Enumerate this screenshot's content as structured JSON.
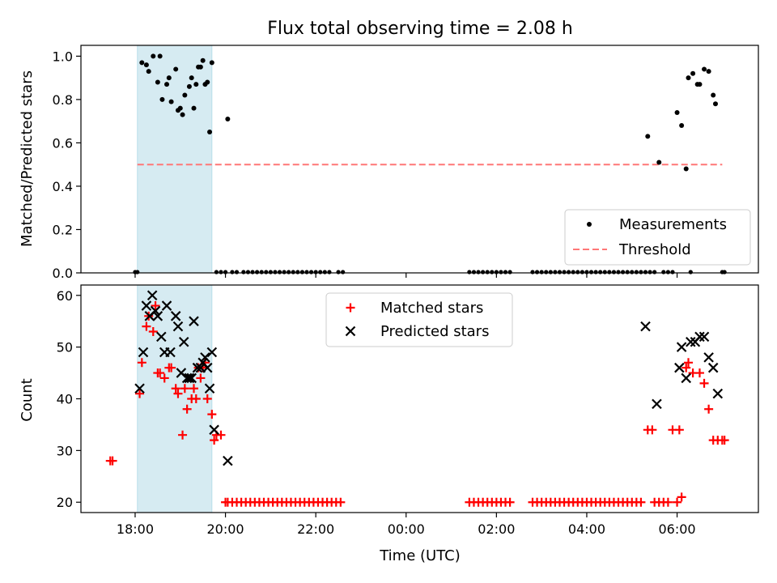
{
  "chart_data": [
    {
      "type": "scatter",
      "title": "Flux total observing time = 2.08 h",
      "xlabel": "",
      "ylabel": "Matched/Predicted stars",
      "x_unit": "hours since 00:00 UTC (negative = previous day)",
      "xlim": [
        -7.2,
        7.8
      ],
      "ylim": [
        0,
        1.05
      ],
      "yticks": [
        0,
        0.2,
        0.4,
        0.6,
        0.8,
        1.0
      ],
      "ytick_labels": [
        "0.0",
        "0.2",
        "0.4",
        "0.6",
        "0.8",
        "1.0"
      ],
      "observing_window": [
        -5.95,
        -4.3
      ],
      "threshold": {
        "name": "Threshold",
        "y": 0.5,
        "x_range": [
          -5.95,
          7.0
        ],
        "color": "#ff7777"
      },
      "legend_position": "lower-right",
      "series": [
        {
          "name": "Measurements",
          "color": "#000000",
          "x": [
            -5.85,
            -5.75,
            -5.7,
            -5.6,
            -5.5,
            -5.45,
            -5.4,
            -5.3,
            -5.25,
            -5.2,
            -5.1,
            -5.05,
            -5.0,
            -4.95,
            -4.9,
            -4.8,
            -4.75,
            -4.7,
            -4.65,
            -4.6,
            -4.55,
            -4.5,
            -4.45,
            -4.4,
            -4.35,
            -4.3,
            -3.95,
            5.35,
            5.6,
            6.0,
            6.1,
            6.2,
            6.25,
            6.35,
            6.45,
            6.5,
            6.6,
            6.7,
            6.8,
            6.85
          ],
          "y": [
            0.97,
            0.96,
            0.93,
            1.0,
            0.88,
            1.0,
            0.8,
            0.87,
            0.9,
            0.79,
            0.94,
            0.75,
            0.76,
            0.73,
            0.82,
            0.86,
            0.9,
            0.76,
            0.87,
            0.95,
            0.95,
            0.98,
            0.87,
            0.88,
            0.65,
            0.97,
            0.71,
            0.63,
            0.51,
            0.74,
            0.68,
            0.48,
            0.9,
            0.92,
            0.87,
            0.87,
            0.94,
            0.93,
            0.82,
            0.78
          ],
          "zero_x": [
            -6.0,
            -5.95,
            -4.2,
            -4.1,
            -4.0,
            -3.85,
            -3.75,
            -3.6,
            -3.5,
            -3.4,
            -3.3,
            -3.2,
            -3.1,
            -3.0,
            -2.9,
            -2.8,
            -2.7,
            -2.6,
            -2.5,
            -2.4,
            -2.3,
            -2.2,
            -2.1,
            -2.0,
            -1.9,
            -1.8,
            -1.7,
            -1.5,
            -1.4,
            1.4,
            1.5,
            1.6,
            1.7,
            1.8,
            1.9,
            2.0,
            2.1,
            2.2,
            2.3,
            2.8,
            2.9,
            3.0,
            3.1,
            3.2,
            3.3,
            3.4,
            3.5,
            3.6,
            3.7,
            3.8,
            3.9,
            4.0,
            4.1,
            4.2,
            4.3,
            4.4,
            4.5,
            4.6,
            4.7,
            4.8,
            4.9,
            5.0,
            5.1,
            5.2,
            5.3,
            5.4,
            5.5,
            5.7,
            5.8,
            5.9,
            6.3,
            7.0,
            7.05
          ]
        }
      ]
    },
    {
      "type": "scatter",
      "title": "",
      "xlabel": "Time (UTC)",
      "ylabel": "Count",
      "xlim": [
        -7.2,
        7.8
      ],
      "ylim": [
        18,
        62
      ],
      "xticks": [
        -6,
        -4,
        -2,
        0,
        2,
        4,
        6
      ],
      "xtick_labels": [
        "18:00",
        "20:00",
        "22:00",
        "00:00",
        "02:00",
        "04:00",
        "06:00"
      ],
      "yticks": [
        20,
        30,
        40,
        50,
        60
      ],
      "ytick_labels": [
        "20",
        "30",
        "40",
        "50",
        "60"
      ],
      "observing_window": [
        -5.95,
        -4.3
      ],
      "legend_position": "upper-center",
      "series": [
        {
          "name": "Matched stars",
          "marker": "plus",
          "color": "#ff0000",
          "x": [
            -6.55,
            -6.5,
            -5.9,
            -5.85,
            -5.75,
            -5.7,
            -5.6,
            -5.55,
            -5.5,
            -5.45,
            -5.35,
            -5.25,
            -5.2,
            -5.1,
            -5.05,
            -4.95,
            -4.9,
            -4.85,
            -4.75,
            -4.7,
            -4.65,
            -4.6,
            -4.55,
            -4.5,
            -4.45,
            -4.4,
            -4.3,
            -4.25,
            -4.2,
            -4.1,
            -4.0,
            -3.95,
            -3.85,
            -3.75,
            -3.65,
            -3.55,
            -3.45,
            -3.35,
            -3.25,
            -3.15,
            -3.05,
            -2.95,
            -2.85,
            -2.75,
            -2.65,
            -2.55,
            -2.45,
            -2.35,
            -2.25,
            -2.15,
            -2.05,
            -1.95,
            -1.85,
            -1.75,
            -1.65,
            -1.55,
            -1.45,
            1.4,
            1.5,
            1.6,
            1.7,
            1.8,
            1.9,
            2.0,
            2.1,
            2.2,
            2.3,
            2.8,
            2.9,
            3.0,
            3.1,
            3.2,
            3.3,
            3.4,
            3.5,
            3.6,
            3.7,
            3.8,
            3.9,
            4.0,
            4.1,
            4.2,
            4.3,
            4.4,
            4.5,
            4.6,
            4.7,
            4.8,
            4.9,
            5.0,
            5.1,
            5.2,
            5.35,
            5.45,
            5.5,
            5.6,
            5.7,
            5.8,
            5.9,
            6.0,
            6.05,
            6.1,
            6.2,
            6.25,
            6.35,
            6.5,
            6.6,
            6.7,
            6.8,
            6.9,
            7.0,
            7.05
          ],
          "y": [
            28,
            28,
            41,
            47,
            54,
            56,
            53,
            58,
            45,
            45,
            44,
            46,
            46,
            42,
            41,
            33,
            42,
            38,
            40,
            42,
            40,
            46,
            44,
            46,
            47,
            40,
            37,
            32,
            33,
            33,
            20,
            20,
            20,
            20,
            20,
            20,
            20,
            20,
            20,
            20,
            20,
            20,
            20,
            20,
            20,
            20,
            20,
            20,
            20,
            20,
            20,
            20,
            20,
            20,
            20,
            20,
            20,
            20,
            20,
            20,
            20,
            20,
            20,
            20,
            20,
            20,
            20,
            20,
            20,
            20,
            20,
            20,
            20,
            20,
            20,
            20,
            20,
            20,
            20,
            20,
            20,
            20,
            20,
            20,
            20,
            20,
            20,
            20,
            20,
            20,
            20,
            20,
            34,
            34,
            20,
            20,
            20,
            20,
            34,
            20,
            34,
            21,
            46,
            47,
            45,
            45,
            43,
            38,
            32,
            32,
            32,
            32
          ]
        },
        {
          "name": "Predicted stars",
          "marker": "x",
          "color": "#000000",
          "x": [
            -5.9,
            -5.82,
            -5.75,
            -5.68,
            -5.62,
            -5.55,
            -5.5,
            -5.42,
            -5.35,
            -5.3,
            -5.22,
            -5.1,
            -5.05,
            -4.98,
            -4.92,
            -4.85,
            -4.8,
            -4.75,
            -4.7,
            -4.62,
            -4.55,
            -4.5,
            -4.45,
            -4.4,
            -4.35,
            -4.3,
            -4.25,
            -3.95,
            5.3,
            5.55,
            6.05,
            6.1,
            6.2,
            6.3,
            6.4,
            6.5,
            6.6,
            6.7,
            6.8,
            6.9
          ],
          "y": [
            42,
            49,
            58,
            56,
            60,
            57,
            56,
            52,
            49,
            58,
            49,
            56,
            54,
            45,
            51,
            44,
            44,
            44,
            55,
            46,
            46,
            47,
            48,
            46,
            42,
            49,
            34,
            28,
            54,
            39,
            46,
            50,
            44,
            51,
            51,
            52,
            52,
            48,
            46,
            41
          ]
        }
      ]
    }
  ]
}
